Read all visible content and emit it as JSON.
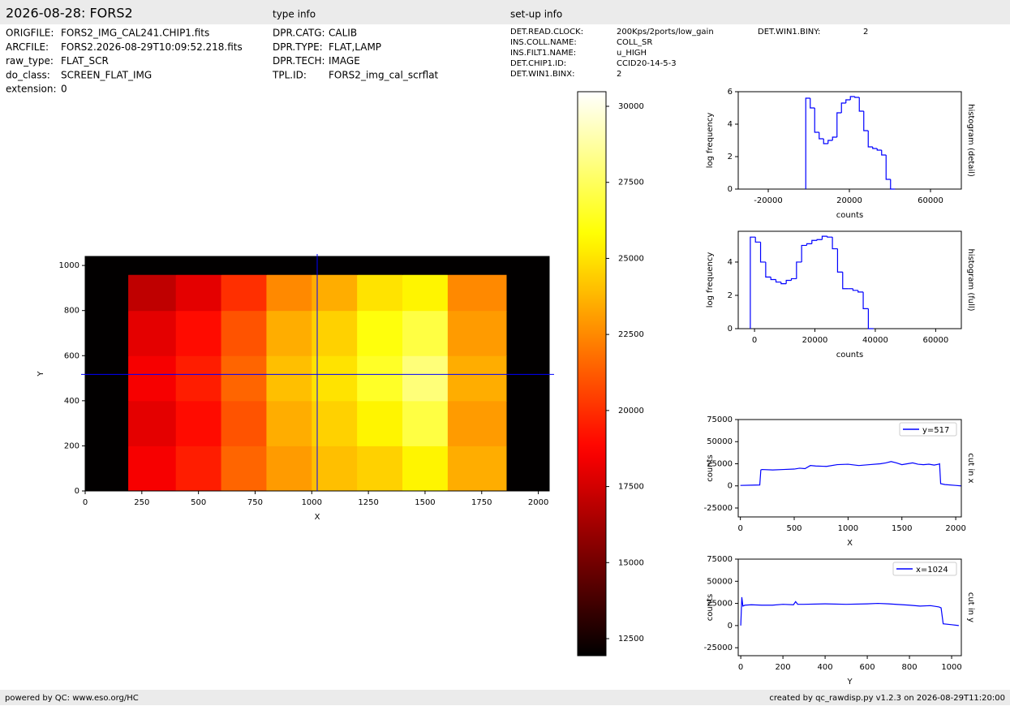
{
  "header": {
    "title": "2026-08-28: FORS2",
    "type_title": "type info",
    "setup_title": "set-up info"
  },
  "info": {
    "file": [
      {
        "label": "ORIGFILE:",
        "value": "FORS2_IMG_CAL241.CHIP1.fits"
      },
      {
        "label": "ARCFILE:",
        "value": "FORS2.2026-08-29T10:09:52.218.fits"
      },
      {
        "label": "raw_type:",
        "value": "FLAT_SCR"
      },
      {
        "label": "do_class:",
        "value": "SCREEN_FLAT_IMG"
      },
      {
        "label": "extension:",
        "value": "0"
      }
    ],
    "type": [
      {
        "label": "DPR.CATG:",
        "value": "CALIB"
      },
      {
        "label": "DPR.TYPE:",
        "value": "FLAT,LAMP"
      },
      {
        "label": "DPR.TECH:",
        "value": "IMAGE"
      },
      {
        "label": "TPL.ID:",
        "value": "FORS2_img_cal_scrflat"
      }
    ],
    "setup": [
      {
        "label": "DET.READ.CLOCK:",
        "value": "200Kps/2ports/low_gain"
      },
      {
        "label": "INS.COLL.NAME:",
        "value": "COLL_SR"
      },
      {
        "label": "INS.FILT1.NAME:",
        "value": "u_HIGH"
      },
      {
        "label": "DET.CHIP1.ID:",
        "value": "CCID20-14-5-3"
      },
      {
        "label": "DET.WIN1.BINX:",
        "value": "2"
      },
      {
        "label": "DET.WIN1.BINY:",
        "value": "2"
      }
    ]
  },
  "footer": {
    "left": "powered by QC: www.eso.org/HC",
    "right": "created by qc_rawdisp.py v1.2.3 on 2026-08-29T11:20:00"
  },
  "chart_data": [
    {
      "type": "heatmap",
      "xlabel": "X",
      "ylabel": "Y",
      "xlim": [
        0,
        2048
      ],
      "ylim": [
        0,
        1040
      ],
      "xticks": [
        0,
        250,
        500,
        750,
        1000,
        1250,
        1500,
        1750,
        2000
      ],
      "yticks": [
        0,
        200,
        400,
        600,
        800,
        1000
      ],
      "xedges": [
        0,
        190,
        400,
        600,
        800,
        1000,
        1200,
        1400,
        1600,
        1860,
        2048
      ],
      "yedges": [
        0,
        200,
        400,
        600,
        800,
        960,
        1040
      ],
      "values": [
        [
          12000,
          18500,
          19500,
          21500,
          23000,
          24000,
          24500,
          25500,
          23500,
          12000
        ],
        [
          12000,
          18000,
          19000,
          21000,
          23500,
          24500,
          25500,
          27000,
          23000,
          12000
        ],
        [
          12000,
          18500,
          19500,
          21500,
          24000,
          25000,
          26500,
          28000,
          23500,
          12000
        ],
        [
          12000,
          18000,
          19000,
          21000,
          23500,
          24500,
          26000,
          27000,
          23000,
          12000
        ],
        [
          12000,
          17000,
          18000,
          20000,
          22500,
          23500,
          25000,
          25500,
          22500,
          12000
        ],
        [
          12000,
          12000,
          12000,
          12000,
          12000,
          12000,
          12000,
          12000,
          12000,
          12000
        ]
      ],
      "colormap": "hot",
      "crosshair": {
        "x": 1024,
        "y": 517,
        "color": "#0000ff"
      },
      "colorbar": {
        "lim": [
          11940,
          30480
        ],
        "ticks": [
          12500,
          15000,
          17500,
          20000,
          22500,
          25000,
          27500,
          30000
        ]
      }
    },
    {
      "type": "histogram",
      "xlabel": "counts",
      "ylabel": "log frequency",
      "side_label": "histogram (detail)",
      "color": "#0000ff",
      "xlim": [
        -34800,
        75200
      ],
      "ylim": [
        0,
        6
      ],
      "xticks": [
        -20000,
        20000,
        60000
      ],
      "yticks": [
        0,
        2,
        4,
        6
      ],
      "bins": [
        -1500,
        700,
        2900,
        5100,
        7300,
        9500,
        11700,
        13900,
        16100,
        18300,
        20500,
        22700,
        24900,
        27100,
        29300,
        31500,
        33700,
        35900,
        38100,
        40300,
        42500
      ],
      "values": [
        5.6,
        5.0,
        3.5,
        3.1,
        2.8,
        3.0,
        3.2,
        4.7,
        5.3,
        5.5,
        5.7,
        5.65,
        4.8,
        3.6,
        2.6,
        2.5,
        2.4,
        2.1,
        0.6,
        0
      ]
    },
    {
      "type": "histogram",
      "xlabel": "counts",
      "ylabel": "log frequency",
      "side_label": "histogram (full)",
      "color": "#0000ff",
      "xlim": [
        -5400,
        68500
      ],
      "ylim": [
        0,
        5.85
      ],
      "xticks": [
        0,
        20000,
        40000,
        60000
      ],
      "yticks": [
        0,
        2,
        4
      ],
      "bins": [
        -1400,
        300,
        2000,
        3700,
        5400,
        7100,
        8800,
        10500,
        12200,
        13900,
        15600,
        17300,
        19000,
        20700,
        22400,
        24100,
        25800,
        27500,
        29200,
        30900,
        32600,
        34300,
        36000,
        37700,
        39400
      ],
      "values": [
        5.5,
        5.2,
        4.0,
        3.1,
        2.95,
        2.8,
        2.7,
        2.9,
        3.0,
        4.0,
        5.0,
        5.1,
        5.3,
        5.35,
        5.55,
        5.5,
        4.8,
        3.4,
        2.4,
        2.4,
        2.3,
        2.2,
        1.2,
        0
      ]
    },
    {
      "type": "line",
      "xlabel": "X",
      "ylabel": "counts",
      "side_label": "cut in x",
      "legend": "upper right",
      "xlim": [
        -20,
        2052
      ],
      "ylim": [
        -35100,
        75000
      ],
      "xticks": [
        0,
        500,
        1000,
        1500,
        2000
      ],
      "yticks": [
        -25000,
        0,
        25000,
        50000,
        75000
      ],
      "x": [
        0,
        100,
        180,
        190,
        200,
        300,
        400,
        500,
        550,
        600,
        650,
        700,
        800,
        900,
        1000,
        1100,
        1200,
        1300,
        1350,
        1400,
        1450,
        1500,
        1550,
        1600,
        1650,
        1700,
        1750,
        1800,
        1840,
        1850,
        1860,
        1900,
        2000,
        2048
      ],
      "series": [
        {
          "name": "y=517",
          "color": "#0000ff",
          "values": [
            500,
            800,
            1000,
            18000,
            18500,
            18000,
            18500,
            19000,
            20000,
            19500,
            23000,
            22500,
            22000,
            24000,
            24500,
            23000,
            24000,
            25000,
            26000,
            27500,
            26000,
            24000,
            25000,
            26000,
            24500,
            24000,
            24500,
            23500,
            24500,
            25000,
            2500,
            1500,
            500,
            0
          ]
        }
      ]
    },
    {
      "type": "line",
      "xlabel": "Y",
      "ylabel": "counts",
      "side_label": "cut in y",
      "legend": "upper right",
      "xlim": [
        -12,
        1046
      ],
      "ylim": [
        -34000,
        75000
      ],
      "xticks": [
        0,
        200,
        400,
        600,
        800,
        1000
      ],
      "yticks": [
        -25000,
        0,
        25000,
        50000,
        75000
      ],
      "x": [
        0,
        5,
        10,
        20,
        50,
        100,
        150,
        200,
        250,
        260,
        270,
        300,
        400,
        500,
        600,
        650,
        700,
        800,
        850,
        900,
        940,
        950,
        960,
        1000,
        1034
      ],
      "series": [
        {
          "name": "x=1024",
          "color": "#0000ff",
          "values": [
            0,
            32000,
            22000,
            23000,
            23500,
            23000,
            23000,
            24000,
            23500,
            27000,
            24000,
            24000,
            24500,
            24000,
            24500,
            25000,
            24500,
            23000,
            22000,
            22500,
            21000,
            20000,
            2000,
            1000,
            0
          ]
        }
      ]
    }
  ]
}
